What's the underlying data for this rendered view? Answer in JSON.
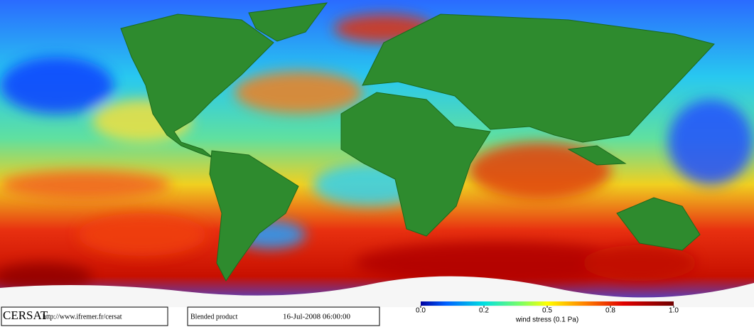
{
  "footer": {
    "logo": "CERSAT",
    "url": "http://www.ifremer.fr/cersat",
    "product": "Blended product",
    "timestamp": "16-Jul-2008 06:00:00"
  },
  "colorbar": {
    "ticks": [
      {
        "value": 0,
        "label": "0.0"
      },
      0.2,
      0.5,
      0.8,
      {
        "value": 1,
        "label": "1.0"
      }
    ],
    "label": "wind stress (0.1 Pa)"
  }
}
